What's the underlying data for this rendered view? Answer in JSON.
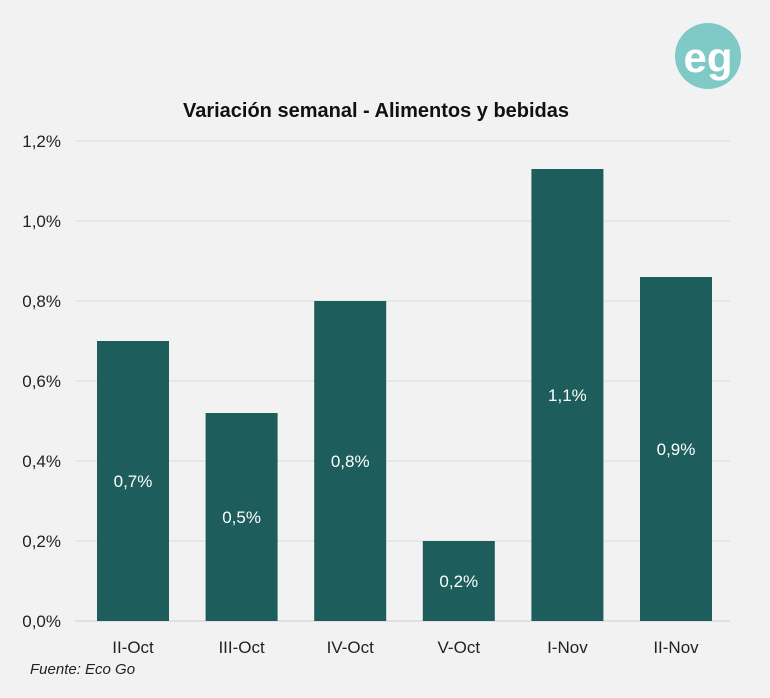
{
  "logo": {
    "text": "eg",
    "color": "#7fcac6"
  },
  "source": "Fuente: Eco Go",
  "chart_data": {
    "type": "bar",
    "title": "Variación semanal - Alimentos y bebidas",
    "xlabel": "",
    "ylabel": "",
    "categories": [
      "II-Oct",
      "III-Oct",
      "IV-Oct",
      "V-Oct",
      "I-Nov",
      "II-Nov"
    ],
    "values": [
      0.7,
      0.52,
      0.8,
      0.2,
      1.13,
      0.86
    ],
    "data_labels": [
      "0,7%",
      "0,5%",
      "0,8%",
      "0,2%",
      "1,1%",
      "0,9%"
    ],
    "ylim": [
      0,
      1.2
    ],
    "yticks": [
      0,
      0.2,
      0.4,
      0.6,
      0.8,
      1.0,
      1.2
    ],
    "ytick_labels": [
      "0,0%",
      "0,2%",
      "0,4%",
      "0,6%",
      "0,8%",
      "1,0%",
      "1,2%"
    ],
    "grid": true,
    "bar_color": "#1d5e5c",
    "legend": "none"
  }
}
